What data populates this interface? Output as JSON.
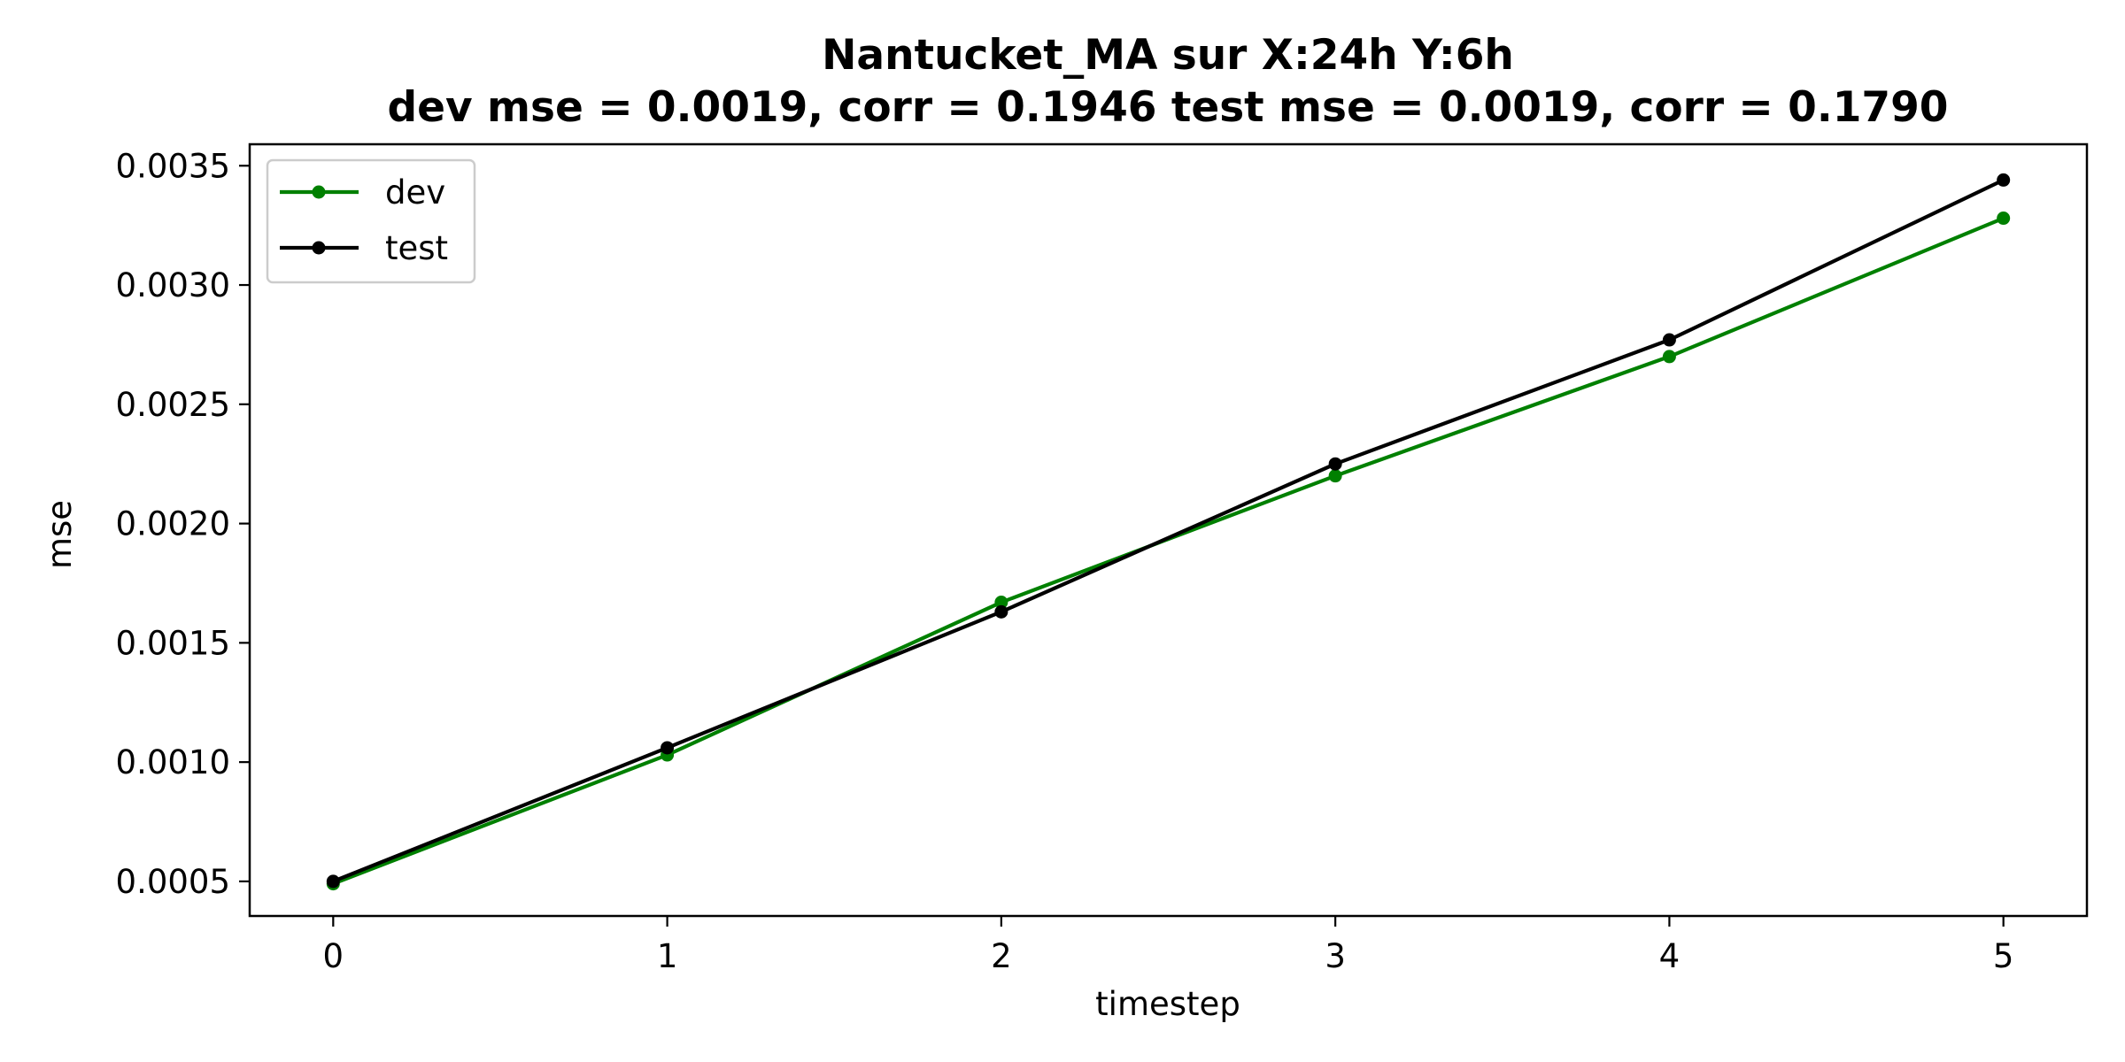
{
  "chart_data": {
    "type": "line",
    "title": "Nantucket_MA   sur   X:24h   Y:6h",
    "subtitle": "dev mse = 0.0019, corr = 0.1946   test mse = 0.0019, corr = 0.1790",
    "xlabel": "timestep",
    "ylabel": "mse",
    "x": [
      0,
      1,
      2,
      3,
      4,
      5
    ],
    "xticks": [
      "0",
      "1",
      "2",
      "3",
      "4",
      "5"
    ],
    "yticks": [
      "0.0005",
      "0.0010",
      "0.0015",
      "0.0020",
      "0.0025",
      "0.0030",
      "0.0035"
    ],
    "ytick_values": [
      0.0005,
      0.001,
      0.0015,
      0.002,
      0.0025,
      0.003,
      0.0035
    ],
    "xlim": [
      -0.25,
      5.25
    ],
    "ylim": [
      0.000355,
      0.00359
    ],
    "grid": false,
    "legend_position": "top-left",
    "series": [
      {
        "name": "dev",
        "color": "#008000",
        "values": [
          0.00049,
          0.00103,
          0.00167,
          0.0022,
          0.0027,
          0.00328
        ]
      },
      {
        "name": "test",
        "color": "#000000",
        "values": [
          0.0005,
          0.00106,
          0.00163,
          0.00225,
          0.00277,
          0.00344
        ]
      }
    ]
  }
}
